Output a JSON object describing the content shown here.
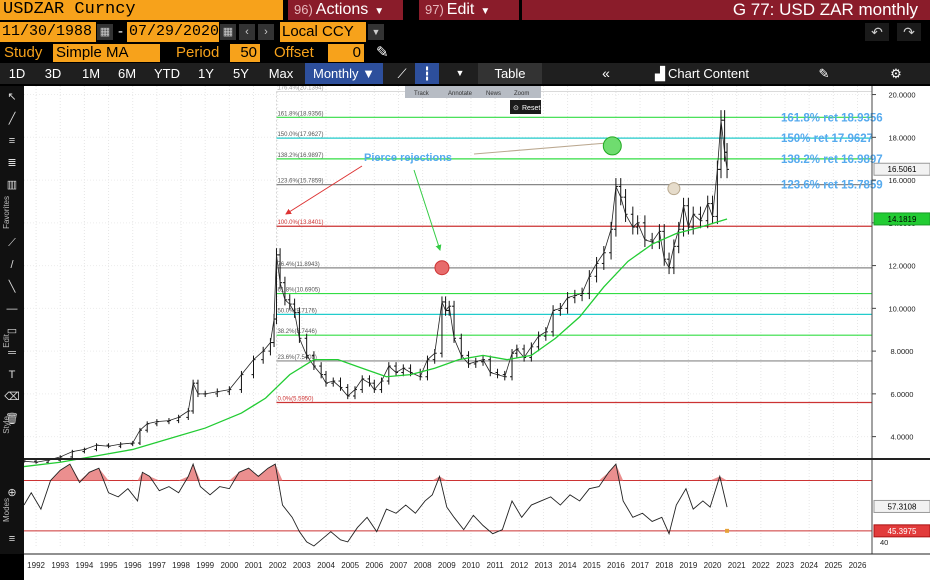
{
  "window": {
    "ticker": "USDZAR Curncy",
    "actions_num": "96)",
    "actions_label": "Actions",
    "edit_num": "97)",
    "edit_label": "Edit",
    "title": "G 77: USD ZAR monthly"
  },
  "range": {
    "start": "11/30/1988",
    "end": "07/29/2020",
    "separator": "-",
    "currency": "Local CCY"
  },
  "study": {
    "label": "Study",
    "value": "Simple MA",
    "period_label": "Period",
    "period": "50",
    "offset_label": "Offset",
    "offset": "0"
  },
  "toolbar": {
    "periods": [
      "1D",
      "3D",
      "1M",
      "6M",
      "YTD",
      "1Y",
      "5Y",
      "Max"
    ],
    "frequency": "Monthly",
    "table": "Table",
    "chart_content": "Chart Content"
  },
  "popup": {
    "items": [
      "Track",
      "Annotate",
      "News",
      "Zoom"
    ],
    "reset": "Reset"
  },
  "rail": {
    "favorites": "Favorites",
    "edit": "Edit",
    "style": "Style",
    "modes": "Modes"
  },
  "colors": {
    "price": "#ffffff",
    "ma": "#22cc33",
    "fib_red": "#cc3333",
    "fib_green": "#33dd44",
    "fib_gray": "#888888",
    "fib_cyan": "#22cccc",
    "annotation_blue": "#55aaee"
  },
  "chart_data": {
    "type": "line",
    "price_axis": {
      "ticks": [
        "20.0000",
        "18.0000",
        "16.0000",
        "14.0000",
        "12.0000",
        "10.0000",
        "8.0000",
        "6.0000",
        "4.0000"
      ],
      "min": 3,
      "max": 20.4
    },
    "x_axis": {
      "labels": [
        "1992",
        "1993",
        "1994",
        "1995",
        "1996",
        "1997",
        "1998",
        "1999",
        "2000",
        "2001",
        "2002",
        "2003",
        "2004",
        "2005",
        "2006",
        "2007",
        "2008",
        "2009",
        "2010",
        "2011",
        "2012",
        "2013",
        "2014",
        "2015",
        "2016",
        "2017",
        "2018",
        "2019",
        "2020",
        "2021",
        "2022",
        "2023",
        "2024",
        "2025",
        "2026"
      ],
      "min": 1991.5,
      "max": 2026.6
    },
    "last_price": "16.5061",
    "ma_value": "14.1819",
    "series": [
      {
        "key": "price",
        "points": [
          [
            1991.5,
            2.85
          ],
          [
            1992.0,
            2.8
          ],
          [
            1992.5,
            2.9
          ],
          [
            1993.0,
            3.05
          ],
          [
            1993.5,
            3.3
          ],
          [
            1994.0,
            3.4
          ],
          [
            1994.5,
            3.6
          ],
          [
            1995.0,
            3.55
          ],
          [
            1995.5,
            3.65
          ],
          [
            1996.0,
            3.7
          ],
          [
            1996.3,
            4.3
          ],
          [
            1996.6,
            4.6
          ],
          [
            1997.0,
            4.7
          ],
          [
            1997.5,
            4.75
          ],
          [
            1997.9,
            4.9
          ],
          [
            1998.3,
            5.2
          ],
          [
            1998.5,
            6.5
          ],
          [
            1998.7,
            6.0
          ],
          [
            1999.0,
            6.0
          ],
          [
            1999.5,
            6.1
          ],
          [
            2000.0,
            6.2
          ],
          [
            2000.5,
            6.9
          ],
          [
            2001.0,
            7.6
          ],
          [
            2001.4,
            8.0
          ],
          [
            2001.7,
            8.4
          ],
          [
            2001.85,
            9.5
          ],
          [
            2001.95,
            12.5
          ],
          [
            2002.1,
            11.2
          ],
          [
            2002.3,
            10.4
          ],
          [
            2002.5,
            10.2
          ],
          [
            2002.7,
            9.8
          ],
          [
            2002.9,
            8.6
          ],
          [
            2003.2,
            7.8
          ],
          [
            2003.5,
            7.3
          ],
          [
            2003.8,
            6.9
          ],
          [
            2004.0,
            6.5
          ],
          [
            2004.3,
            6.6
          ],
          [
            2004.6,
            6.3
          ],
          [
            2004.9,
            5.9
          ],
          [
            2005.2,
            6.2
          ],
          [
            2005.5,
            6.7
          ],
          [
            2005.8,
            6.5
          ],
          [
            2006.0,
            6.2
          ],
          [
            2006.3,
            6.6
          ],
          [
            2006.6,
            7.3
          ],
          [
            2006.9,
            7.0
          ],
          [
            2007.2,
            7.2
          ],
          [
            2007.5,
            7.0
          ],
          [
            2007.9,
            6.8
          ],
          [
            2008.2,
            7.6
          ],
          [
            2008.5,
            7.9
          ],
          [
            2008.8,
            10.3
          ],
          [
            2008.95,
            9.9
          ],
          [
            2009.1,
            10.1
          ],
          [
            2009.3,
            8.6
          ],
          [
            2009.6,
            7.8
          ],
          [
            2009.9,
            7.4
          ],
          [
            2010.2,
            7.5
          ],
          [
            2010.5,
            7.6
          ],
          [
            2010.8,
            7.0
          ],
          [
            2011.1,
            6.9
          ],
          [
            2011.4,
            6.8
          ],
          [
            2011.7,
            7.9
          ],
          [
            2011.9,
            8.1
          ],
          [
            2012.2,
            7.7
          ],
          [
            2012.5,
            8.2
          ],
          [
            2012.8,
            8.7
          ],
          [
            2013.1,
            8.9
          ],
          [
            2013.4,
            9.9
          ],
          [
            2013.7,
            10.0
          ],
          [
            2014.0,
            10.5
          ],
          [
            2014.3,
            10.6
          ],
          [
            2014.6,
            10.7
          ],
          [
            2014.9,
            11.5
          ],
          [
            2015.2,
            12.1
          ],
          [
            2015.5,
            12.6
          ],
          [
            2015.8,
            13.7
          ],
          [
            2016.0,
            15.7
          ],
          [
            2016.2,
            15.2
          ],
          [
            2016.4,
            14.4
          ],
          [
            2016.7,
            13.8
          ],
          [
            2016.9,
            14.0
          ],
          [
            2017.2,
            13.2
          ],
          [
            2017.5,
            13.1
          ],
          [
            2017.8,
            13.6
          ],
          [
            2018.0,
            12.3
          ],
          [
            2018.2,
            11.9
          ],
          [
            2018.4,
            12.9
          ],
          [
            2018.6,
            13.7
          ],
          [
            2018.8,
            14.8
          ],
          [
            2019.0,
            13.8
          ],
          [
            2019.2,
            14.4
          ],
          [
            2019.5,
            14.1
          ],
          [
            2019.8,
            14.9
          ],
          [
            2020.0,
            14.3
          ],
          [
            2020.2,
            16.5
          ],
          [
            2020.35,
            18.8
          ],
          [
            2020.5,
            17.3
          ],
          [
            2020.6,
            16.5
          ]
        ]
      },
      {
        "key": "ma",
        "points": [
          [
            1991.5,
            2.6
          ],
          [
            1993.0,
            2.8
          ],
          [
            1994.5,
            3.1
          ],
          [
            1996.0,
            3.4
          ],
          [
            1997.5,
            3.9
          ],
          [
            1999.0,
            4.4
          ],
          [
            2000.5,
            5.1
          ],
          [
            2001.5,
            5.8
          ],
          [
            2002.5,
            6.9
          ],
          [
            2003.5,
            7.6
          ],
          [
            2004.5,
            7.6
          ],
          [
            2005.5,
            7.2
          ],
          [
            2006.5,
            6.8
          ],
          [
            2007.5,
            6.9
          ],
          [
            2008.5,
            7.2
          ],
          [
            2009.5,
            7.6
          ],
          [
            2010.5,
            7.8
          ],
          [
            2011.5,
            7.6
          ],
          [
            2012.5,
            7.8
          ],
          [
            2013.5,
            8.6
          ],
          [
            2014.5,
            9.6
          ],
          [
            2015.5,
            11.0
          ],
          [
            2016.5,
            12.2
          ],
          [
            2017.5,
            13.0
          ],
          [
            2018.5,
            13.5
          ],
          [
            2019.5,
            13.8
          ],
          [
            2020.6,
            14.18
          ]
        ]
      }
    ],
    "fib_levels": [
      {
        "label": "176.4%(20.1394)",
        "value": 20.1394,
        "color": "gray",
        "weak": true
      },
      {
        "label": "161.8%(18.9356)",
        "value": 18.9356,
        "color": "green"
      },
      {
        "label": "150.0%(17.9627)",
        "value": 17.9627,
        "color": "cyan"
      },
      {
        "label": "138.2%(16.9897)",
        "value": 16.9897,
        "color": "green"
      },
      {
        "label": "123.6%(15.7859)",
        "value": 15.7859,
        "color": "gray"
      },
      {
        "label": "100.0%(13.8401)",
        "value": 13.8401,
        "color": "red"
      },
      {
        "label": "76.4%(11.8943)",
        "value": 11.8943,
        "color": "gray"
      },
      {
        "label": "61.8%(10.6905)",
        "value": 10.6905,
        "color": "green"
      },
      {
        "label": "50.0%(9.7176)",
        "value": 9.7176,
        "color": "cyan"
      },
      {
        "label": "38.2%(8.7446)",
        "value": 8.7446,
        "color": "green"
      },
      {
        "label": "23.6%(7.5408)",
        "value": 7.5408,
        "color": "gray"
      },
      {
        "label": "0.0%(5.5950)",
        "value": 5.595,
        "color": "red"
      }
    ],
    "annotations": {
      "pierce": "Pierce rejections",
      "right_labels": [
        "161.8% ret 18.9356",
        "150% ret 17.9627",
        "138.2% ret 16.9897",
        "123.6% ret 15.7859"
      ],
      "circles": [
        {
          "x": 2008.8,
          "y": 11.9,
          "color": "red"
        },
        {
          "x": 2015.85,
          "y": 17.6,
          "color": "green"
        },
        {
          "x": 2018.4,
          "y": 15.6,
          "color": "beige"
        }
      ]
    },
    "rsi": {
      "axis": {
        "min": 38,
        "max": 80
      },
      "upper": 70,
      "lower": 45.3975,
      "value": "57.3108",
      "lower_label": "45.3975",
      "tick": "40",
      "points": [
        [
          1991.5,
          58
        ],
        [
          1991.8,
          64
        ],
        [
          1992.2,
          56
        ],
        [
          1992.6,
          70
        ],
        [
          1993.0,
          75
        ],
        [
          1993.4,
          78
        ],
        [
          1993.8,
          69
        ],
        [
          1994.2,
          74
        ],
        [
          1994.6,
          76
        ],
        [
          1995.0,
          64
        ],
        [
          1995.4,
          62
        ],
        [
          1995.8,
          66
        ],
        [
          1996.2,
          60
        ],
        [
          1996.4,
          74
        ],
        [
          1996.7,
          72
        ],
        [
          1997.1,
          65
        ],
        [
          1997.5,
          67
        ],
        [
          1997.9,
          64
        ],
        [
          1998.3,
          72
        ],
        [
          1998.5,
          78
        ],
        [
          1998.8,
          67
        ],
        [
          1999.2,
          63
        ],
        [
          1999.6,
          67
        ],
        [
          2000.0,
          66
        ],
        [
          2000.4,
          74
        ],
        [
          2000.8,
          76
        ],
        [
          2001.2,
          72
        ],
        [
          2001.6,
          76
        ],
        [
          2001.9,
          78
        ],
        [
          2002.2,
          58
        ],
        [
          2002.6,
          52
        ],
        [
          2002.9,
          45
        ],
        [
          2003.2,
          40
        ],
        [
          2003.5,
          38
        ],
        [
          2003.9,
          42
        ],
        [
          2004.2,
          45
        ],
        [
          2004.6,
          41
        ],
        [
          2004.9,
          40
        ],
        [
          2005.3,
          47
        ],
        [
          2005.7,
          52
        ],
        [
          2006.1,
          45
        ],
        [
          2006.5,
          56
        ],
        [
          2006.9,
          54
        ],
        [
          2007.3,
          58
        ],
        [
          2007.7,
          54
        ],
        [
          2008.1,
          60
        ],
        [
          2008.4,
          63
        ],
        [
          2008.7,
          72
        ],
        [
          2009.0,
          57
        ],
        [
          2009.3,
          52
        ],
        [
          2009.7,
          46
        ],
        [
          2010.1,
          53
        ],
        [
          2010.5,
          48
        ],
        [
          2010.9,
          44
        ],
        [
          2011.3,
          46
        ],
        [
          2011.7,
          60
        ],
        [
          2012.1,
          52
        ],
        [
          2012.5,
          58
        ],
        [
          2012.9,
          60
        ],
        [
          2013.3,
          62
        ],
        [
          2013.7,
          58
        ],
        [
          2014.1,
          63
        ],
        [
          2014.5,
          60
        ],
        [
          2014.9,
          66
        ],
        [
          2015.3,
          67
        ],
        [
          2015.7,
          74
        ],
        [
          2016.0,
          78
        ],
        [
          2016.3,
          60
        ],
        [
          2016.7,
          52
        ],
        [
          2017.1,
          54
        ],
        [
          2017.5,
          50
        ],
        [
          2017.9,
          52
        ],
        [
          2018.2,
          44
        ],
        [
          2018.5,
          58
        ],
        [
          2018.9,
          66
        ],
        [
          2019.2,
          56
        ],
        [
          2019.6,
          60
        ],
        [
          2019.9,
          57
        ],
        [
          2020.3,
          72
        ],
        [
          2020.6,
          57
        ]
      ]
    }
  }
}
